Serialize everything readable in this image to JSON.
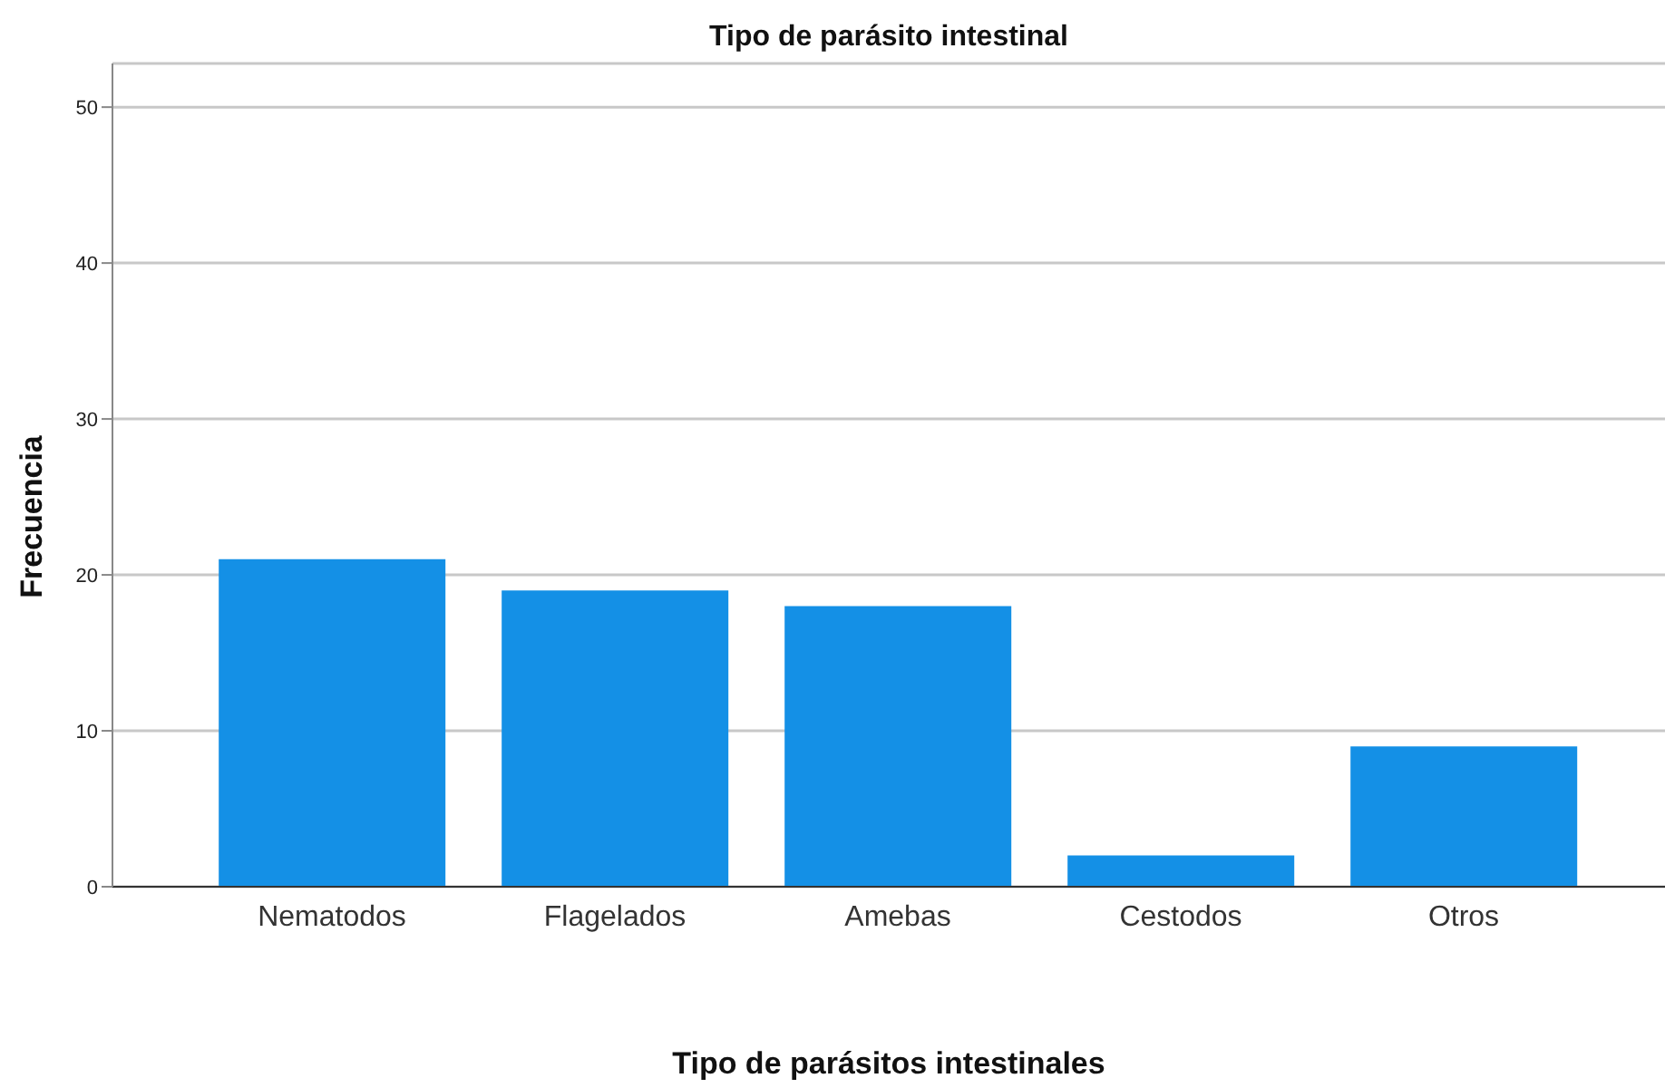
{
  "chart_data": {
    "type": "bar",
    "title": "Tipo de parásito intestinal",
    "xlabel": "Tipo de parásitos intestinales",
    "ylabel": "Frecuencia",
    "categories": [
      "Nematodos",
      "Flagelados",
      "Amebas",
      "Cestodos",
      "Otros"
    ],
    "values": [
      21,
      19,
      18,
      2,
      9
    ],
    "color": "#1490e6",
    "ylim": [
      0,
      52.8
    ],
    "yticks": [
      0,
      10,
      20,
      30,
      40,
      50
    ],
    "grid": "y"
  }
}
